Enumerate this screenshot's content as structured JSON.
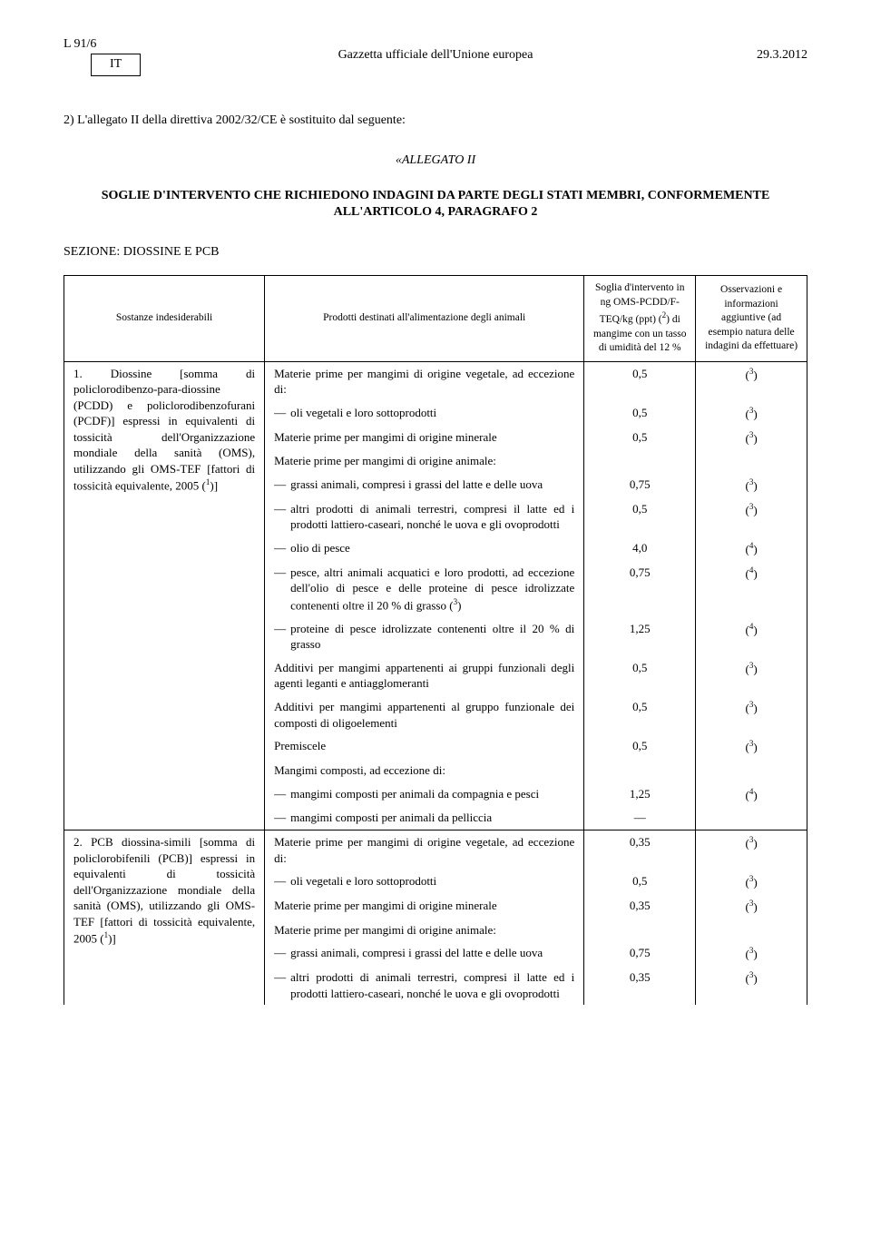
{
  "header": {
    "left": "L 91/6",
    "lang": "IT",
    "center": "Gazzetta ufficiale dell'Unione europea",
    "right": "29.3.2012"
  },
  "clause_intro": "2) L'allegato II della direttiva 2002/32/CE è sostituito dal seguente:",
  "allegato": "«ALLEGATO II",
  "main_title": "SOGLIE D'INTERVENTO CHE RICHIEDONO INDAGINI DA PARTE DEGLI STATI MEMBRI, CONFORMEMENTE ALL'ARTICOLO 4, PARAGRAFO 2",
  "section_title": "SEZIONE: DIOSSINE E PCB",
  "columns": {
    "c1": "Sostanze indesiderabili",
    "c2": "Prodotti destinati all'alimentazione degli animali",
    "c3_pre": "Soglia d'intervento in ng OMS-PCDD/F-TEQ/kg (ppt) (",
    "c3_sup": "2",
    "c3_post": ") di mangime con un tasso di umidità del 12 %",
    "c4": "Osservazioni e informazioni aggiuntive (ad esempio natura delle indagini da effettuare)"
  },
  "substance1_pre": "1. Diossine [somma di policlorodibenzo-para-diossine (PCDD) e policlorodibenzofurani (PCDF)] espressi in equivalenti di tossicità dell'Organizzazione mondiale della sanità (OMS), utilizzando gli OMS-TEF [fattori di tossicità equivalente, 2005 (",
  "substance1_sup": "1",
  "substance1_post": ")]",
  "substance2_pre": "2. PCB diossina-simili [somma di policlorobifenili (PCB)] espressi in equivalenti di tossicità dell'Organizzazione mondiale della sanità (OMS), utilizzando gli OMS-TEF [fattori di tossicità equivalente, 2005 (",
  "substance2_sup": "1",
  "substance2_post": ")]",
  "rows1": [
    {
      "prod": "Materie prime per mangimi di origine vegetale, ad eccezione di:",
      "val": "0,5",
      "obs_sup": "3",
      "indent": false
    },
    {
      "prod": "oli vegetali e loro sottoprodotti",
      "val": "0,5",
      "obs_sup": "3",
      "indent": true
    },
    {
      "prod": "Materie prime per mangimi di origine minerale",
      "val": "0,5",
      "obs_sup": "3",
      "indent": false
    },
    {
      "prod": "Materie prime per mangimi di origine animale:",
      "val": "",
      "obs_sup": "",
      "indent": false
    },
    {
      "prod": "grassi animali, compresi i grassi del latte e delle uova",
      "val": "0,75",
      "obs_sup": "3",
      "indent": true
    },
    {
      "prod": "altri prodotti di animali terrestri, compresi il latte ed i prodotti lattiero-caseari, nonché le uova e gli ovoprodotti",
      "val": "0,5",
      "obs_sup": "3",
      "indent": true
    },
    {
      "prod": "olio di pesce",
      "val": "4,0",
      "obs_sup": "4",
      "indent": true
    },
    {
      "prod_pre": "pesce, altri animali acquatici e loro prodotti, ad eccezione dell'olio di pesce e delle proteine di pesce idrolizzate contenenti oltre il 20 % di grasso (",
      "prod_sup": "3",
      "prod_post": ")",
      "val": "0,75",
      "obs_sup": "4",
      "indent": true
    },
    {
      "prod": "proteine di pesce idrolizzate contenenti oltre il 20 % di grasso",
      "val": "1,25",
      "obs_sup": "4",
      "indent": true
    },
    {
      "prod": "Additivi per mangimi appartenenti ai gruppi funzionali degli agenti leganti e antiagglomeranti",
      "val": "0,5",
      "obs_sup": "3",
      "indent": false
    },
    {
      "prod": "Additivi per mangimi appartenenti al gruppo funzionale dei composti di oligoelementi",
      "val": "0,5",
      "obs_sup": "3",
      "indent": false
    },
    {
      "prod": "Premiscele",
      "val": "0,5",
      "obs_sup": "3",
      "indent": false
    },
    {
      "prod": "Mangimi composti, ad eccezione di:",
      "val": "",
      "obs_sup": "",
      "indent": false
    },
    {
      "prod": "mangimi composti per animali da compagnia e pesci",
      "val": "1,25",
      "obs_sup": "4",
      "indent": true
    },
    {
      "prod": "mangimi composti per animali da pelliccia",
      "val": "—",
      "obs_sup": "",
      "indent": true
    }
  ],
  "rows2": [
    {
      "prod": "Materie prime per mangimi di origine vegetale, ad eccezione di:",
      "val": "0,35",
      "obs_sup": "3",
      "indent": false
    },
    {
      "prod": "oli vegetali e loro sottoprodotti",
      "val": "0,5",
      "obs_sup": "3",
      "indent": true
    },
    {
      "prod": "Materie prime per mangimi di origine minerale",
      "val": "0,35",
      "obs_sup": "3",
      "indent": false
    },
    {
      "prod": "Materie prime per mangimi di origine animale:",
      "val": "",
      "obs_sup": "",
      "indent": false
    },
    {
      "prod": "grassi animali, compresi i grassi del latte e delle uova",
      "val": "0,75",
      "obs_sup": "3",
      "indent": true
    },
    {
      "prod": "altri prodotti di animali terrestri, compresi il latte ed i prodotti lattiero-caseari, nonché le uova e gli ovoprodotti",
      "val": "0,35",
      "obs_sup": "3",
      "indent": true
    }
  ]
}
